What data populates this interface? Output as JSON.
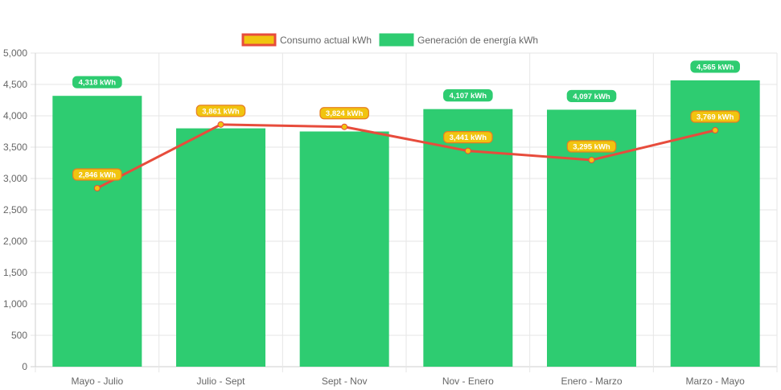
{
  "chart_data": {
    "type": "bar",
    "categories": [
      "Mayo - Julio",
      "Julio - Sept",
      "Sept - Nov",
      "Nov - Enero",
      "Enero - Marzo",
      "Marzo - Mayo"
    ],
    "series": [
      {
        "name": "Generación de energía kWh",
        "kind": "bar",
        "color": "#2ecc71",
        "values": [
          4318,
          3800,
          3750,
          4107,
          4097,
          4565
        ],
        "labels": [
          "4,318 kWh",
          "",
          "",
          "4,107 kWh",
          "4,097 kWh",
          "4,565 kWh"
        ]
      },
      {
        "name": "Consumo actual kWh",
        "kind": "line",
        "color": "#e74c3c",
        "point_color": "#f1c40f",
        "values": [
          2846,
          3861,
          3824,
          3441,
          3295,
          3769
        ],
        "labels": [
          "2,846 kWh",
          "3,861 kWh",
          "3,824 kWh",
          "3,441 kWh",
          "3,295 kWh",
          "3,769 kWh"
        ]
      }
    ],
    "legend": {
      "position": "top",
      "items": [
        {
          "label": "Consumo actual kWh",
          "fill": "#f1c40f",
          "border": "#e74c3c"
        },
        {
          "label": "Generación de energía kWh",
          "fill": "#2ecc71",
          "border": "#2ecc71"
        }
      ]
    },
    "y_ticks": [
      "0",
      "500",
      "1,000",
      "1,500",
      "2,000",
      "2,500",
      "3,000",
      "3,500",
      "4,000",
      "4,500",
      "5,000"
    ],
    "ylim": [
      0,
      5000
    ],
    "grid": true,
    "title": "",
    "xlabel": "",
    "ylabel": ""
  }
}
